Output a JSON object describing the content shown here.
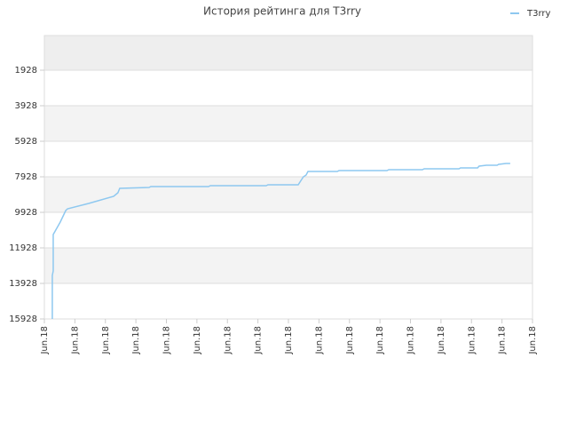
{
  "chart_data": {
    "type": "line",
    "title": "История рейтинга для T3rry",
    "series": [
      {
        "name": "T3rry",
        "color": "#8ec8f0",
        "x": [
          0.26,
          0.26,
          0.29,
          0.29,
          0.52,
          0.7,
          0.76,
          1.45,
          2.27,
          2.41,
          2.47,
          3.43,
          3.49,
          5.38,
          5.44,
          7.27,
          7.33,
          8.32,
          8.49,
          8.58,
          8.64,
          9.6,
          9.66,
          11.23,
          11.29,
          12.39,
          12.45,
          13.59,
          13.64,
          14.2,
          14.25,
          14.49,
          14.84,
          14.89,
          15.13,
          15.27
        ],
        "values": [
          15928,
          13478,
          13228,
          11178,
          10478,
          9828,
          9728,
          9428,
          9028,
          8828,
          8578,
          8528,
          8478,
          8478,
          8428,
          8428,
          8378,
          8378,
          7928,
          7828,
          7628,
          7628,
          7578,
          7578,
          7528,
          7528,
          7478,
          7478,
          7428,
          7428,
          7328,
          7278,
          7278,
          7228,
          7178,
          7178
        ]
      }
    ],
    "xlim": [
      0,
      16
    ],
    "xticks": [
      {
        "value": 0,
        "label": "Jun.18"
      },
      {
        "value": 1,
        "label": "Jun.18"
      },
      {
        "value": 2,
        "label": "Jun.18"
      },
      {
        "value": 3,
        "label": "Jun.18"
      },
      {
        "value": 4,
        "label": "Jun.18"
      },
      {
        "value": 5,
        "label": "Jun.18"
      },
      {
        "value": 6,
        "label": "Jun.18"
      },
      {
        "value": 7,
        "label": "Jun.18"
      },
      {
        "value": 8,
        "label": "Jun.18"
      },
      {
        "value": 9,
        "label": "Jun.18"
      },
      {
        "value": 10,
        "label": "Jun.18"
      },
      {
        "value": 11,
        "label": "Jun.18"
      },
      {
        "value": 12,
        "label": "Jun.18"
      },
      {
        "value": 13,
        "label": "Jun.18"
      },
      {
        "value": 14,
        "label": "Jun.18"
      },
      {
        "value": 15,
        "label": "Jun.18"
      },
      {
        "value": 16,
        "label": "Jun.18"
      }
    ],
    "ylim": [
      -22,
      15928
    ],
    "y_inverted": true,
    "yticks": [
      1928,
      3928,
      5928,
      7928,
      9928,
      11928,
      13928,
      15928
    ],
    "grid": true,
    "legend": "top-right"
  }
}
